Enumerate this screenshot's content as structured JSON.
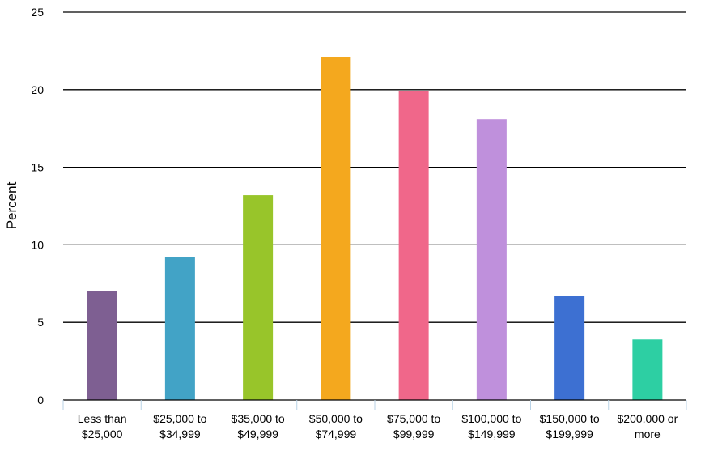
{
  "chart_data": {
    "type": "bar",
    "title": "",
    "xlabel": "",
    "ylabel": "Percent",
    "ylim": [
      0,
      25
    ],
    "yticks": [
      0,
      5,
      10,
      15,
      20,
      25
    ],
    "grid": true,
    "categories": [
      [
        "Less than",
        "$25,000"
      ],
      [
        "$25,000 to",
        "$34,999"
      ],
      [
        "$35,000 to",
        "$49,999"
      ],
      [
        "$50,000 to",
        "$74,999"
      ],
      [
        "$75,000 to",
        "$99,999"
      ],
      [
        "$100,000 to",
        "$149,999"
      ],
      [
        "$150,000 to",
        "$199,999"
      ],
      [
        "$200,000 or",
        "more"
      ]
    ],
    "values": [
      7.0,
      9.2,
      13.2,
      22.1,
      19.9,
      18.1,
      6.7,
      3.9
    ],
    "colors": [
      "#7e5f92",
      "#42a3c6",
      "#98c52a",
      "#f4a81e",
      "#f0678a",
      "#bf90dc",
      "#3d70d2",
      "#2dcfa3"
    ]
  }
}
